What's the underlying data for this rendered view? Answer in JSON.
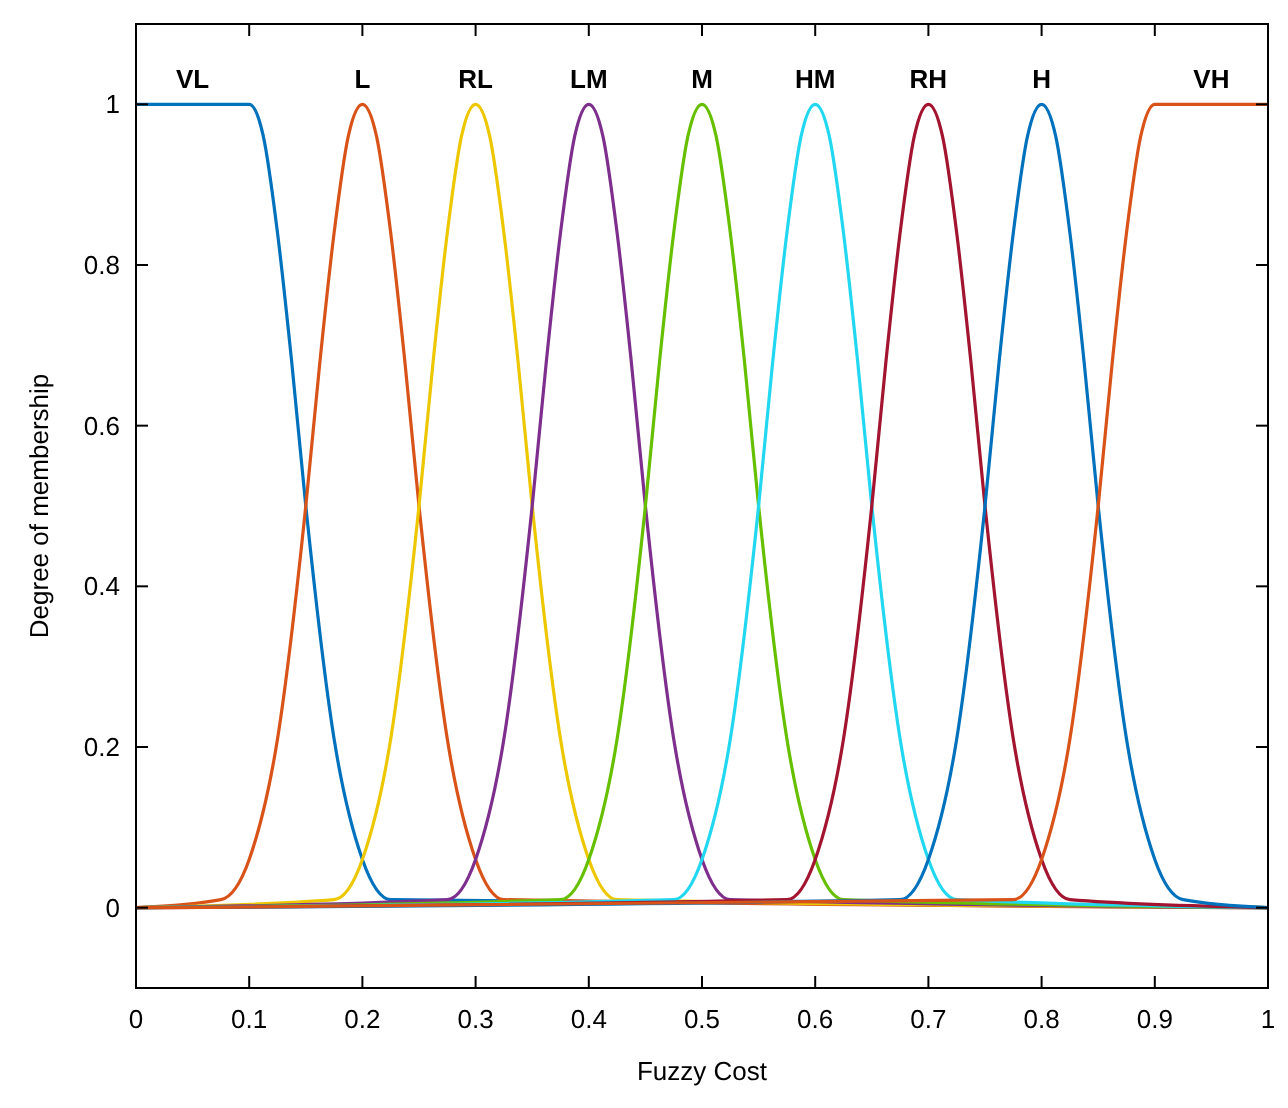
{
  "chart_data": {
    "type": "line",
    "xlabel": "Fuzzy Cost",
    "ylabel": "Degree of membership",
    "xlim": [
      0,
      1
    ],
    "ylim": [
      -0.1,
      1.1
    ],
    "xticks": [
      0,
      0.1,
      0.2,
      0.3,
      0.4,
      0.5,
      0.6,
      0.7,
      0.8,
      0.9,
      1
    ],
    "yticks": [
      0,
      0.2,
      0.4,
      0.6,
      0.8,
      1
    ],
    "grid": false,
    "marker": "none",
    "line_style": "solid",
    "series": [
      {
        "name": "VL",
        "color": "#0072bd",
        "x": [
          0,
          0.05,
          0.1,
          0.1125,
          0.125,
          0.1375,
          0.15,
          0.175,
          0.2,
          0.225,
          1
        ],
        "values": [
          1,
          1,
          1,
          0.96,
          0.84,
          0.68,
          0.5,
          0.21,
          0.06,
          0.01,
          0
        ]
      },
      {
        "name": "L",
        "color": "#d95319",
        "x": [
          0,
          0.075,
          0.1,
          0.125,
          0.15,
          0.1625,
          0.175,
          0.1875,
          0.2,
          0.2125,
          0.225,
          0.2375,
          0.25,
          0.275,
          0.3,
          0.325,
          1
        ],
        "values": [
          0,
          0.01,
          0.06,
          0.21,
          0.5,
          0.68,
          0.84,
          0.96,
          1,
          0.96,
          0.84,
          0.68,
          0.5,
          0.21,
          0.06,
          0.01,
          0
        ]
      },
      {
        "name": "RL",
        "color": "#edc800",
        "x": [
          0,
          0.175,
          0.2,
          0.225,
          0.25,
          0.2625,
          0.275,
          0.2875,
          0.3,
          0.3125,
          0.325,
          0.3375,
          0.35,
          0.375,
          0.4,
          0.425,
          1
        ],
        "values": [
          0,
          0.01,
          0.06,
          0.21,
          0.5,
          0.68,
          0.84,
          0.96,
          1,
          0.96,
          0.84,
          0.68,
          0.5,
          0.21,
          0.06,
          0.01,
          0
        ]
      },
      {
        "name": "LM",
        "color": "#7e2f8e",
        "x": [
          0,
          0.275,
          0.3,
          0.325,
          0.35,
          0.3625,
          0.375,
          0.3875,
          0.4,
          0.4125,
          0.425,
          0.4375,
          0.45,
          0.475,
          0.5,
          0.525,
          1
        ],
        "values": [
          0,
          0.01,
          0.06,
          0.21,
          0.5,
          0.68,
          0.84,
          0.96,
          1,
          0.96,
          0.84,
          0.68,
          0.5,
          0.21,
          0.06,
          0.01,
          0
        ]
      },
      {
        "name": "M",
        "color": "#66c000",
        "x": [
          0,
          0.375,
          0.4,
          0.425,
          0.45,
          0.4625,
          0.475,
          0.4875,
          0.5,
          0.5125,
          0.525,
          0.5375,
          0.55,
          0.575,
          0.6,
          0.625,
          1
        ],
        "values": [
          0,
          0.01,
          0.06,
          0.21,
          0.5,
          0.68,
          0.84,
          0.96,
          1,
          0.96,
          0.84,
          0.68,
          0.5,
          0.21,
          0.06,
          0.01,
          0
        ]
      },
      {
        "name": "HM",
        "color": "#22d8f0",
        "x": [
          0,
          0.475,
          0.5,
          0.525,
          0.55,
          0.5625,
          0.575,
          0.5875,
          0.6,
          0.6125,
          0.625,
          0.6375,
          0.65,
          0.675,
          0.7,
          0.725,
          1
        ],
        "values": [
          0,
          0.01,
          0.06,
          0.21,
          0.5,
          0.68,
          0.84,
          0.96,
          1,
          0.96,
          0.84,
          0.68,
          0.5,
          0.21,
          0.06,
          0.01,
          0
        ]
      },
      {
        "name": "RH",
        "color": "#a2142f",
        "x": [
          0,
          0.575,
          0.6,
          0.625,
          0.65,
          0.6625,
          0.675,
          0.6875,
          0.7,
          0.7125,
          0.725,
          0.7375,
          0.75,
          0.775,
          0.8,
          0.825,
          1
        ],
        "values": [
          0,
          0.01,
          0.06,
          0.21,
          0.5,
          0.68,
          0.84,
          0.96,
          1,
          0.96,
          0.84,
          0.68,
          0.5,
          0.21,
          0.06,
          0.01,
          0
        ]
      },
      {
        "name": "H",
        "color": "#0072bd",
        "x": [
          0,
          0.675,
          0.7,
          0.725,
          0.75,
          0.7625,
          0.775,
          0.7875,
          0.8,
          0.8125,
          0.825,
          0.8375,
          0.85,
          0.875,
          0.9,
          0.925,
          1
        ],
        "values": [
          0,
          0.01,
          0.06,
          0.21,
          0.5,
          0.68,
          0.84,
          0.96,
          1,
          0.96,
          0.84,
          0.68,
          0.5,
          0.21,
          0.06,
          0.01,
          0
        ]
      },
      {
        "name": "VH",
        "color": "#d95319",
        "x": [
          0,
          0.775,
          0.8,
          0.825,
          0.85,
          0.8625,
          0.875,
          0.8875,
          0.9,
          0.95,
          1
        ],
        "values": [
          0,
          0.01,
          0.06,
          0.21,
          0.5,
          0.68,
          0.84,
          0.96,
          1,
          1,
          1
        ]
      }
    ]
  }
}
